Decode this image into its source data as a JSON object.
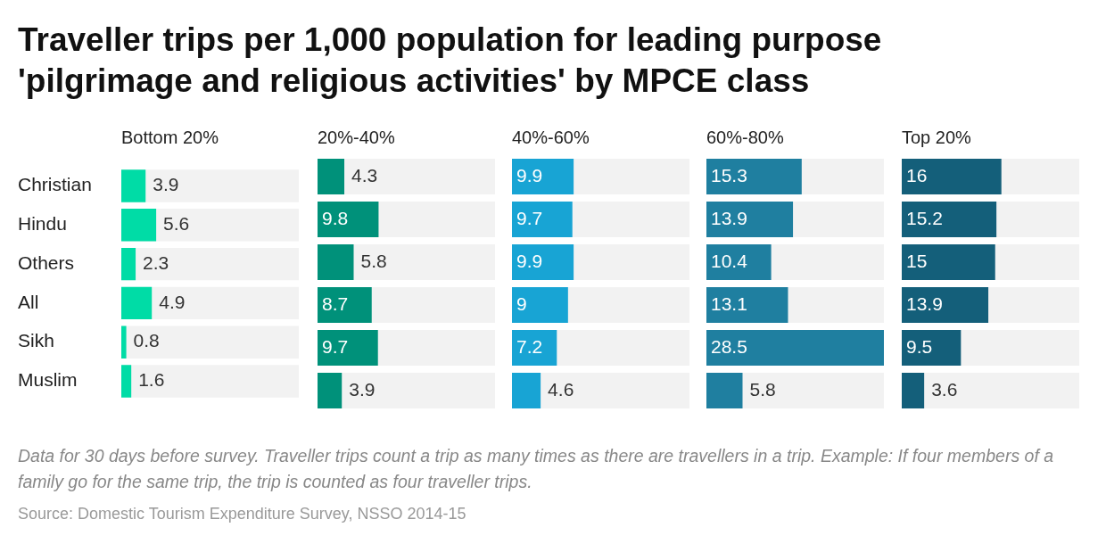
{
  "chart_data": [
    {
      "type": "other",
      "title": "Traveller trips per 1,000 population for leading purpose 'pilgrimage and religious activities' by MPCE class",
      "annotations": [
        "Data for 30 days before survey. Traveller trips count a trip as many times as there are travellers in a trip. Example: If four members of a family go for the same trip, the trip is counted as four traveller trips.",
        "Source: Domestic Tourism Expenditure Survey, NSSO 2014-15"
      ]
    },
    {
      "type": "bar",
      "orientation": "horizontal",
      "title": "Bottom 20%",
      "categories": [
        "Christian",
        "Hindu",
        "Others",
        "All",
        "Sikh",
        "Muslim"
      ],
      "values": [
        3.9,
        5.6,
        2.3,
        4.9,
        0.8,
        1.6
      ],
      "color": "#00dca6",
      "xlim": [
        0,
        28.5
      ],
      "data_labels": true,
      "tick_labels": "y"
    },
    {
      "type": "bar",
      "orientation": "horizontal",
      "title": "20%-40%",
      "categories": [
        null,
        null,
        null,
        null,
        null,
        null
      ],
      "values": [
        4.3,
        9.8,
        5.8,
        8.7,
        9.7,
        3.9
      ],
      "color": "#00917a",
      "xlim": [
        0,
        28.5
      ],
      "data_labels": true,
      "tick_labels": false
    },
    {
      "type": "bar",
      "orientation": "horizontal",
      "title": "40%-60%",
      "categories": [
        null,
        null,
        null,
        null,
        null,
        null
      ],
      "values": [
        9.9,
        9.7,
        9.9,
        9,
        7.2,
        4.6
      ],
      "color": "#18a4d4",
      "xlim": [
        0,
        28.5
      ],
      "data_labels": true,
      "tick_labels": false
    },
    {
      "type": "bar",
      "orientation": "horizontal",
      "title": "60%-80%",
      "categories": [
        null,
        null,
        null,
        null,
        null,
        null
      ],
      "values": [
        15.3,
        13.9,
        10.4,
        13.1,
        28.5,
        5.8
      ],
      "color": "#1f7fa0",
      "xlim": [
        0,
        28.5
      ],
      "data_labels": true,
      "tick_labels": false
    },
    {
      "type": "bar",
      "orientation": "horizontal",
      "title": "Top 20%",
      "categories": [
        null,
        null,
        null,
        null,
        null,
        null
      ],
      "values": [
        16,
        15.2,
        15,
        13.9,
        9.5,
        3.6
      ],
      "color": "#145f7a",
      "xlim": [
        0,
        28.5
      ],
      "data_labels": true,
      "tick_labels": false
    }
  ]
}
